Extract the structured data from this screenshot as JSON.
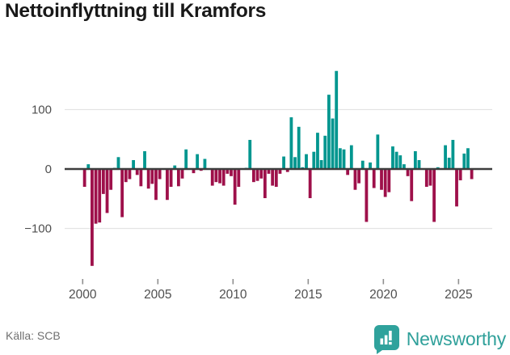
{
  "header": {
    "title": "Nettoinflyttning till Kramfors"
  },
  "footer": {
    "source": "Källa: SCB",
    "brand": "Newsworthy"
  },
  "colors": {
    "positive_bar": "#00968f",
    "negative_bar": "#9e104a",
    "zero_axis_line": "#3d3d3d",
    "gridline": "#e4e4e4",
    "tick_mark": "#8f8f8f",
    "axis_text": "#4f4f4f",
    "title_text": "#191919",
    "source_text": "#707070",
    "brand_teal": "#2fa09a",
    "logo_glyph": "#ffffff"
  },
  "chart_data": {
    "type": "bar",
    "title": "Nettoinflyttning till Kramfors",
    "source": "Källa: SCB",
    "frequency": "quarterly",
    "start_period": "2000Q1",
    "end_period": "2025Q4",
    "grid": "horizontal-only",
    "legend": "none",
    "ylim": [
      -175,
      185
    ],
    "y_ticks": [
      {
        "value": 100,
        "label": "100"
      },
      {
        "value": 0,
        "label": "0"
      },
      {
        "value": -100,
        "label": "−100"
      }
    ],
    "x_ticks": [
      {
        "year": 2000,
        "label": "2000"
      },
      {
        "year": 2005,
        "label": "2005"
      },
      {
        "year": 2010,
        "label": "2010"
      },
      {
        "year": 2015,
        "label": "2015"
      },
      {
        "year": 2020,
        "label": "2020"
      },
      {
        "year": 2025,
        "label": "2025"
      }
    ],
    "values": [
      -30,
      8,
      -163,
      -92,
      -90,
      -42,
      -74,
      -35,
      2,
      20,
      -81,
      -22,
      -17,
      15,
      -10,
      -29,
      30,
      -33,
      -25,
      -52,
      -17,
      0,
      -52,
      -30,
      6,
      -29,
      -16,
      33,
      0,
      -7,
      25,
      -3,
      17,
      0,
      -28,
      -22,
      -24,
      -28,
      -8,
      -12,
      -60,
      -30,
      0,
      2,
      49,
      -22,
      -20,
      -16,
      -49,
      -8,
      -28,
      -30,
      -8,
      21,
      -5,
      87,
      20,
      71,
      3,
      25,
      -49,
      29,
      61,
      15,
      56,
      125,
      85,
      165,
      35,
      33,
      -10,
      40,
      -35,
      -24,
      14,
      -89,
      11,
      -32,
      58,
      -35,
      -47,
      -39,
      38,
      29,
      23,
      8,
      -12,
      -54,
      30,
      15,
      0,
      -30,
      -28,
      -89,
      3,
      0,
      40,
      19,
      49,
      -63,
      -19,
      26,
      35,
      -17
    ]
  }
}
